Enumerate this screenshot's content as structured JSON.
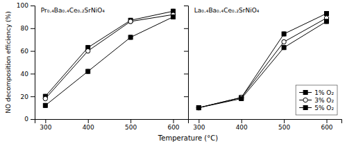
{
  "chart_data": [
    {
      "type": "line",
      "title": "Pr₀.₄Ba₀.₄Ce₀.₂SrNiO₄",
      "x_label": "Temperature (°C)",
      "y_label": "NO decomposition efficiency (%)",
      "x": [
        300,
        400,
        500,
        600
      ],
      "series": [
        {
          "name": "1% O₂",
          "color": "black",
          "marker": "square",
          "line_style": "solid",
          "values": [
            20,
            63,
            87,
            95
          ],
          "errors": [
            1.8,
            1.8,
            1.8,
            1.8
          ]
        },
        {
          "name": "3% O₂",
          "color": "black",
          "marker": "circle-open",
          "line_style": "solid",
          "values": [
            18,
            60,
            86,
            92
          ],
          "errors": [
            1.8,
            1.8,
            1.8,
            1.8
          ]
        },
        {
          "name": "5% O₂",
          "color": "black",
          "marker": "square",
          "line_style": "solid",
          "values": [
            12,
            42,
            72,
            90
          ],
          "errors": [
            1.8,
            1.8,
            1.8,
            1.8
          ]
        }
      ],
      "xlim": [
        275,
        635
      ],
      "xticks": [
        300,
        400,
        500,
        600
      ],
      "ylim": [
        0,
        100
      ],
      "yticks": [
        0,
        20,
        40,
        60,
        80,
        100
      ],
      "grid": false
    },
    {
      "type": "line",
      "title": "La₀.₄Ba₀.₄Ce₀.₂SrNiO₄",
      "x": [
        300,
        400,
        500,
        600
      ],
      "series": [
        {
          "name": "1% O₂",
          "color": "black",
          "marker": "square",
          "line_style": "solid",
          "values": [
            10,
            19,
            75,
            93
          ],
          "errors": [
            1.8,
            1.8,
            1.8,
            1.8
          ]
        },
        {
          "name": "3% O₂",
          "color": "black",
          "marker": "circle-open",
          "line_style": "solid",
          "values": [
            10,
            19,
            68,
            89
          ],
          "errors": [
            1.8,
            1.8,
            1.8,
            1.8
          ]
        },
        {
          "name": "5% O₂",
          "color": "black",
          "marker": "square",
          "line_style": "solid",
          "values": [
            10,
            18,
            63,
            86
          ],
          "errors": [
            1.8,
            1.8,
            1.8,
            1.8
          ]
        }
      ],
      "xlim": [
        275,
        635
      ],
      "xticks": [
        300,
        400,
        500,
        600
      ],
      "ylim": [
        0,
        100
      ],
      "yticks": [
        0,
        20,
        40,
        60,
        80,
        100
      ],
      "grid": false,
      "tick_labels": "x",
      "legend": "lower right"
    }
  ]
}
